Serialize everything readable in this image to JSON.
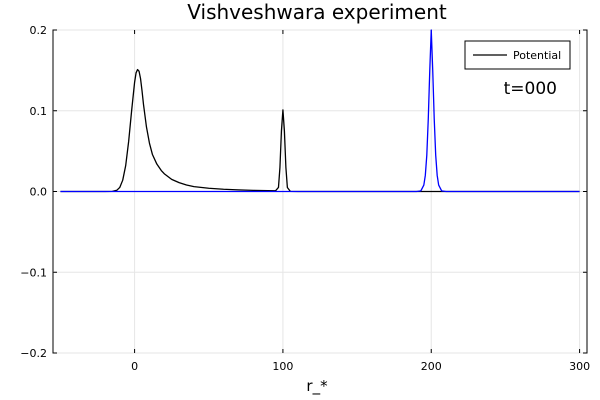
{
  "chart_data": {
    "type": "line",
    "title": "Vishveshwara experiment",
    "xlabel": "r_*",
    "ylabel": "",
    "xlim": [
      -55,
      305
    ],
    "ylim": [
      -0.2,
      0.2
    ],
    "xticks": [
      0,
      100,
      200,
      300
    ],
    "yticks": [
      -0.2,
      -0.1,
      0.0,
      0.1,
      0.2
    ],
    "xtick_labels": [
      "0",
      "100",
      "200",
      "300"
    ],
    "ytick_labels": [
      "−0.2",
      "−0.1",
      "0.0",
      "0.1",
      "0.2"
    ],
    "grid": true,
    "legend_position": "top-right",
    "annotation": "t=000",
    "series": [
      {
        "name": "Potential",
        "color": "#000000",
        "x": [
          -50,
          -20,
          -15,
          -12,
          -10,
          -8,
          -6,
          -4,
          -2,
          0,
          1,
          2,
          3,
          4,
          5,
          6,
          8,
          10,
          12,
          15,
          18,
          20,
          25,
          30,
          35,
          40,
          50,
          60,
          70,
          80,
          90,
          95,
          97,
          98,
          99,
          100,
          101,
          102,
          103,
          105,
          110,
          150,
          200,
          250,
          300
        ],
        "y": [
          0.0,
          0.0,
          0.0002,
          0.0015,
          0.005,
          0.014,
          0.032,
          0.062,
          0.1,
          0.135,
          0.147,
          0.151,
          0.149,
          0.14,
          0.125,
          0.108,
          0.08,
          0.06,
          0.046,
          0.034,
          0.026,
          0.022,
          0.015,
          0.011,
          0.008,
          0.006,
          0.004,
          0.0028,
          0.002,
          0.0014,
          0.001,
          0.0009,
          0.005,
          0.03,
          0.075,
          0.101,
          0.075,
          0.03,
          0.005,
          0.0002,
          0.0,
          0.0,
          0.0,
          0.0,
          0.0
        ]
      },
      {
        "name": "",
        "color": "#0000ff",
        "x": [
          -50,
          150,
          190,
          193,
          195,
          196,
          197,
          198,
          199,
          200,
          201,
          202,
          203,
          204,
          205,
          207,
          210,
          250,
          300
        ],
        "y": [
          0.0,
          0.0,
          0.0,
          0.0008,
          0.008,
          0.02,
          0.045,
          0.09,
          0.15,
          0.2,
          0.15,
          0.09,
          0.045,
          0.02,
          0.008,
          0.0008,
          0.0,
          0.0,
          0.0
        ]
      }
    ]
  }
}
